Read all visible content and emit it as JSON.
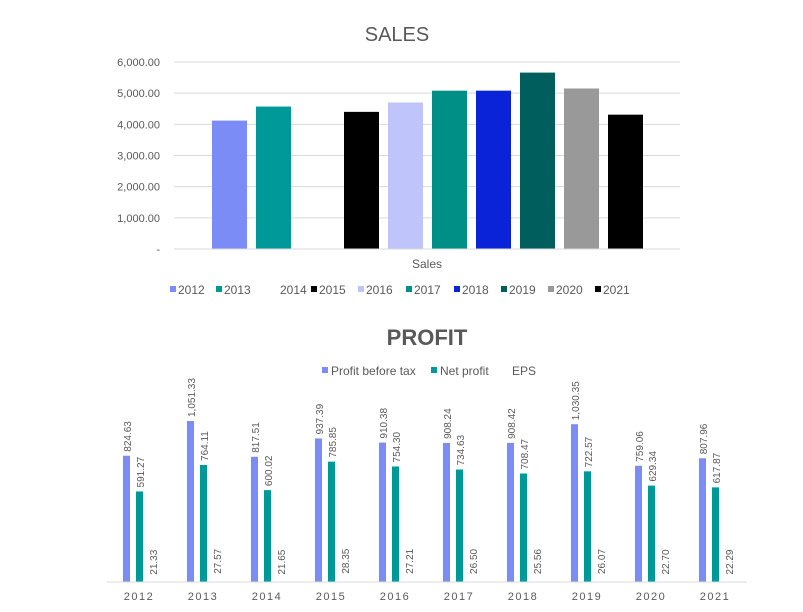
{
  "chart_data": [
    {
      "type": "bar",
      "title": "SALES",
      "xlabel": "Sales",
      "ylabel": "",
      "ylim": [
        0,
        6000
      ],
      "yticks": [
        "-",
        "1,000.00",
        "2,000.00",
        "3,000.00",
        "4,000.00",
        "5,000.00",
        "6,000.00"
      ],
      "grid": true,
      "legend_position": "bottom",
      "categories": [
        "Sales"
      ],
      "series": [
        {
          "name": "2012",
          "values": [
            4120
          ],
          "color": "#7b8cf7"
        },
        {
          "name": "2013",
          "values": [
            4570
          ],
          "color": "#009999"
        },
        {
          "name": "2014",
          "values": [
            0
          ],
          "color": "#ffffff"
        },
        {
          "name": "2015",
          "values": [
            4400
          ],
          "color": "#000000"
        },
        {
          "name": "2016",
          "values": [
            4700
          ],
          "color": "#bfc5fb"
        },
        {
          "name": "2017",
          "values": [
            5080
          ],
          "color": "#008f86"
        },
        {
          "name": "2018",
          "values": [
            5080
          ],
          "color": "#0a23d8"
        },
        {
          "name": "2019",
          "values": [
            5660
          ],
          "color": "#005f5c"
        },
        {
          "name": "2020",
          "values": [
            5150
          ],
          "color": "#999999"
        },
        {
          "name": "2021",
          "values": [
            4310
          ],
          "color": "#000000"
        }
      ]
    },
    {
      "type": "bar",
      "title": "PROFIT",
      "xlabel": "",
      "ylabel": "",
      "grid": false,
      "legend_position": "top",
      "categories": [
        "2012",
        "2013",
        "2014",
        "2015",
        "2016",
        "2017",
        "2018",
        "2019",
        "2020",
        "2021"
      ],
      "series": [
        {
          "name": "Profit before tax",
          "color": "#7b8cf7",
          "values": [
            824.63,
            1051.33,
            817.51,
            937.39,
            910.38,
            908.24,
            908.42,
            1030.35,
            759.06,
            807.96
          ],
          "labels": [
            "824.63",
            "1,051.33",
            "817.51",
            "937.39",
            "910.38",
            "908.24",
            "908.42",
            "1,030.35",
            "759.06",
            "807.96"
          ]
        },
        {
          "name": "Net profit",
          "color": "#009999",
          "values": [
            591.27,
            764.11,
            600.02,
            785.85,
            754.3,
            734.63,
            708.47,
            722.57,
            629.34,
            617.87
          ],
          "labels": [
            "591.27",
            "764.11",
            "600.02",
            "785.85",
            "754.30",
            "734.63",
            "708.47",
            "722.57",
            "629.34",
            "617.87"
          ]
        },
        {
          "name": "EPS",
          "color": "#ffffff",
          "values": [
            21.33,
            27.57,
            21.65,
            28.35,
            27.21,
            26.5,
            25.56,
            26.07,
            22.7,
            22.29
          ],
          "labels": [
            "21.33",
            "27.57",
            "21.65",
            "28.35",
            "27.21",
            "26.50",
            "25.56",
            "26.07",
            "22.70",
            "22.29"
          ]
        }
      ]
    }
  ]
}
